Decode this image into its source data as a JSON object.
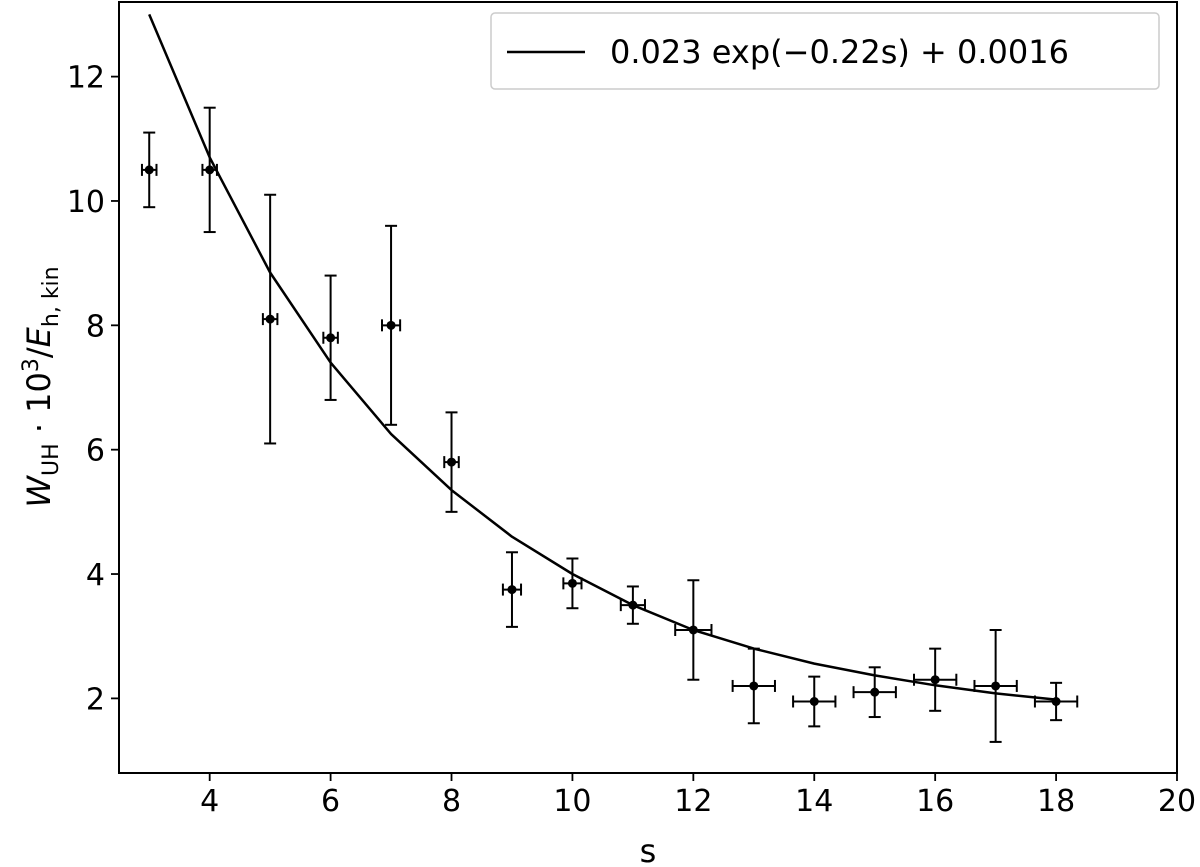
{
  "chart_data": {
    "type": "scatter",
    "xlabel": "s",
    "ylabel": {
      "main": "W",
      "main_sub": "UH",
      "mid": " · 10",
      "mid_sup": "3",
      "slash": "/",
      "end": "E",
      "end_sub": "h, kin"
    },
    "xlim": [
      2.5,
      20
    ],
    "ylim": [
      0.8,
      13.2
    ],
    "xticks": [
      4,
      6,
      8,
      10,
      12,
      14,
      16,
      18,
      20
    ],
    "yticks": [
      2,
      4,
      6,
      8,
      10,
      12
    ],
    "grid": false,
    "legend_position": "top-right",
    "series": [
      {
        "name": "0.023 exp(−0.22s) + 0.0016",
        "kind": "line",
        "color": "#000000",
        "x": [
          3,
          4,
          5,
          6,
          7,
          8,
          9,
          10,
          11,
          12,
          13,
          14,
          15,
          16,
          17,
          18
        ],
        "y": [
          13.0,
          10.7,
          8.85,
          7.4,
          6.25,
          5.35,
          4.6,
          4.0,
          3.5,
          3.1,
          2.8,
          2.56,
          2.37,
          2.21,
          2.08,
          1.98
        ]
      },
      {
        "kind": "errorbar",
        "color": "#000000",
        "x": [
          3,
          4,
          5,
          6,
          7,
          8,
          9,
          10,
          11,
          12,
          13,
          14,
          15,
          16,
          17,
          18
        ],
        "y": [
          10.5,
          10.5,
          8.1,
          7.8,
          8.0,
          5.8,
          3.75,
          3.85,
          3.5,
          3.1,
          2.2,
          1.95,
          2.1,
          2.3,
          2.2,
          1.95
        ],
        "yerr": [
          0.6,
          1.0,
          2.0,
          1.0,
          1.6,
          0.8,
          0.6,
          0.4,
          0.3,
          0.8,
          0.6,
          0.4,
          0.4,
          0.5,
          0.9,
          0.3
        ],
        "xerr": [
          0.12,
          0.12,
          0.12,
          0.12,
          0.15,
          0.12,
          0.15,
          0.15,
          0.2,
          0.3,
          0.35,
          0.35,
          0.35,
          0.35,
          0.35,
          0.35
        ]
      }
    ]
  }
}
